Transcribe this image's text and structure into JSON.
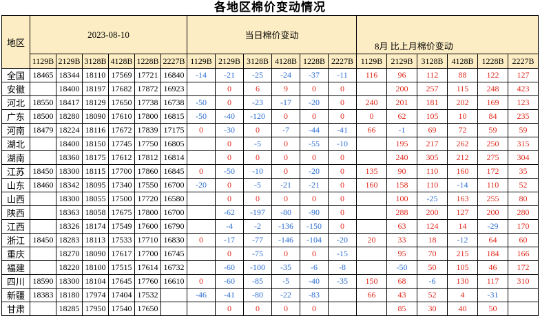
{
  "title": "各地区棉价变动情况",
  "table": {
    "region_header": "地区",
    "groups": [
      {
        "label": "2023-08-10",
        "columns": [
          "1129B",
          "2129B",
          "3128B",
          "4128B",
          "1228B",
          "2227B"
        ]
      },
      {
        "label": "当日棉价变动",
        "columns": [
          "1129B",
          "2129B",
          "3128B",
          "4128B",
          "1228B",
          "2227B"
        ]
      },
      {
        "label": "8月 比上月棉价变动",
        "columns": [
          "1129B",
          "2129B",
          "3128B",
          "4128B",
          "1228B",
          "2227B"
        ]
      }
    ],
    "rows": [
      {
        "region": "全国",
        "prices": [
          "18465",
          "18344",
          "18110",
          "17569",
          "17721",
          "16840"
        ],
        "daily": [
          "-14",
          "-21",
          "-25",
          "-24",
          "-37",
          "-11"
        ],
        "monthly": [
          "116",
          "96",
          "112",
          "88",
          "122",
          "127"
        ]
      },
      {
        "region": "安徽",
        "prices": [
          "",
          "18400",
          "18197",
          "17682",
          "17872",
          "16923"
        ],
        "daily": [
          "",
          "0",
          "6",
          "9",
          "0",
          "0"
        ],
        "monthly": [
          "",
          "200",
          "257",
          "115",
          "248",
          "423"
        ]
      },
      {
        "region": "河北",
        "prices": [
          "18550",
          "18417",
          "18129",
          "17650",
          "17738",
          "16738"
        ],
        "daily": [
          "-50",
          "0",
          "-23",
          "-17",
          "-20",
          "0"
        ],
        "monthly": [
          "240",
          "201",
          "181",
          "202",
          "169",
          "123"
        ]
      },
      {
        "region": "广东",
        "prices": [
          "18500",
          "18280",
          "18090",
          "17610",
          "17800",
          "16815"
        ],
        "daily": [
          "-50",
          "-40",
          "-120",
          "0",
          "0",
          "0"
        ],
        "monthly": [
          "0",
          "62",
          "105",
          "10",
          "84",
          "235"
        ]
      },
      {
        "region": "河南",
        "prices": [
          "18479",
          "18224",
          "18116",
          "17672",
          "17839",
          "17175"
        ],
        "daily": [
          "0",
          "-30",
          "0",
          "-7",
          "-44",
          "-41"
        ],
        "monthly": [
          "66",
          "-1",
          "69",
          "72",
          "59",
          "59"
        ]
      },
      {
        "region": "湖北",
        "prices": [
          "",
          "18400",
          "18150",
          "17745",
          "17750",
          "16805"
        ],
        "daily": [
          "",
          "0",
          "-5",
          "0",
          "-55",
          "-10"
        ],
        "monthly": [
          "",
          "195",
          "217",
          "262",
          "250",
          "315"
        ]
      },
      {
        "region": "湖南",
        "prices": [
          "",
          "18360",
          "18175",
          "17612",
          "17812",
          "16814"
        ],
        "daily": [
          "",
          "0",
          "0",
          "0",
          "0",
          "0"
        ],
        "monthly": [
          "",
          "240",
          "305",
          "212",
          "275",
          "304"
        ]
      },
      {
        "region": "江苏",
        "prices": [
          "18450",
          "18300",
          "18115",
          "17700",
          "17860",
          "16845"
        ],
        "daily": [
          "0",
          "-50",
          "-10",
          "0",
          "-20",
          "0"
        ],
        "monthly": [
          "135",
          "90",
          "110",
          "160",
          "172",
          "35"
        ]
      },
      {
        "region": "山东",
        "prices": [
          "18460",
          "18342",
          "18095",
          "17340",
          "17550",
          "16700"
        ],
        "daily": [
          "-20",
          "0",
          "-5",
          "-21",
          "-21",
          "0"
        ],
        "monthly": [
          "160",
          "158",
          "110",
          "-14",
          "110",
          "52"
        ]
      },
      {
        "region": "山西",
        "prices": [
          "",
          "18300",
          "18055",
          "17500",
          "17720",
          "16580"
        ],
        "daily": [
          "",
          "0",
          "0",
          "0",
          "0",
          "0"
        ],
        "monthly": [
          "",
          "100",
          "-25",
          "163",
          "255",
          "80"
        ]
      },
      {
        "region": "陕西",
        "prices": [
          "",
          "18363",
          "18058",
          "17675",
          "17800",
          "16700"
        ],
        "daily": [
          "",
          "-62",
          "-197",
          "-80",
          "-90",
          "0"
        ],
        "monthly": [
          "",
          "288",
          "200",
          "127",
          "200",
          "280"
        ]
      },
      {
        "region": "江西",
        "prices": [
          "",
          "18326",
          "18174",
          "17549",
          "17600",
          "16790"
        ],
        "daily": [
          "",
          "-4",
          "-2",
          "-136",
          "-150",
          "0"
        ],
        "monthly": [
          "",
          "63",
          "124",
          "14",
          "-29",
          "170"
        ]
      },
      {
        "region": "浙江",
        "prices": [
          "18450",
          "18283",
          "18113",
          "17533",
          "17710",
          "16830"
        ],
        "daily": [
          "0",
          "-17",
          "-77",
          "-146",
          "-104",
          "-20"
        ],
        "monthly": [
          "20",
          "33",
          "18",
          "-12",
          "64",
          "60"
        ]
      },
      {
        "region": "重庆",
        "prices": [
          "",
          "18270",
          "18090",
          "17617",
          "17700",
          "16745"
        ],
        "daily": [
          "",
          "0",
          "-75",
          "0",
          "0",
          "-15"
        ],
        "monthly": [
          "",
          "95",
          "70",
          "215",
          "184",
          "166"
        ]
      },
      {
        "region": "福建",
        "prices": [
          "",
          "18220",
          "18100",
          "17515",
          "17614",
          "16732"
        ],
        "daily": [
          "",
          "-60",
          "-100",
          "-35",
          "-6",
          "-8"
        ],
        "monthly": [
          "",
          "-50",
          "50",
          "105",
          "46",
          "172"
        ]
      },
      {
        "region": "四川",
        "prices": [
          "18590",
          "18300",
          "18104",
          "17645",
          "17760",
          "16610"
        ],
        "daily": [
          "0",
          "-60",
          "-85",
          "-5",
          "-40",
          "-35"
        ],
        "monthly": [
          "150",
          "68",
          "-6",
          "130",
          "117",
          "310"
        ]
      },
      {
        "region": "新疆",
        "prices": [
          "18383",
          "18180",
          "17974",
          "17404",
          "17532",
          ""
        ],
        "daily": [
          "-46",
          "-41",
          "-80",
          "-22",
          "-83",
          ""
        ],
        "monthly": [
          "66",
          "43",
          "52",
          "4",
          "-31",
          ""
        ]
      },
      {
        "region": "甘肃",
        "prices": [
          "",
          "18285",
          "17950",
          "17540",
          "17650",
          ""
        ],
        "daily": [
          "",
          "0",
          "0",
          "0",
          "0",
          ""
        ],
        "monthly": [
          "",
          "85",
          "30",
          "40",
          "50",
          ""
        ]
      }
    ]
  },
  "colors": {
    "header_bg": "#FCEDC4",
    "border": "#000000",
    "price_text": "#000000",
    "negative": "#2F6FD2",
    "positive_or_zero": "#E02A1C"
  }
}
